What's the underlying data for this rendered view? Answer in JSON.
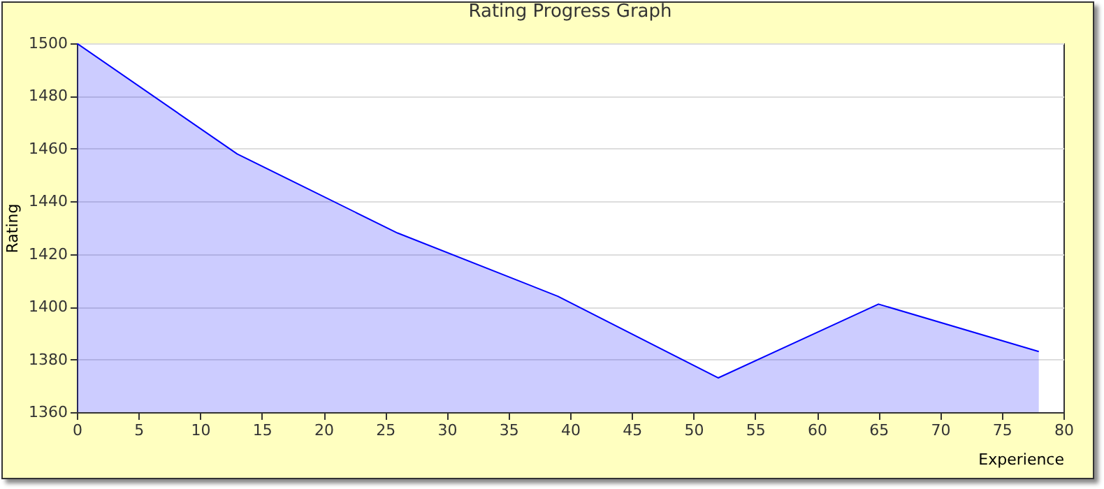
{
  "chart_data": {
    "type": "area",
    "title": "Rating Progress Graph",
    "xlabel": "Experience",
    "ylabel": "Rating",
    "x": [
      0,
      13,
      26,
      39,
      52,
      65,
      78
    ],
    "series": [
      {
        "color": "#0000ff",
        "values": [
          1500,
          1458,
          1428,
          1404,
          1373,
          1401,
          1383
        ]
      }
    ],
    "xlim": [
      0,
      80
    ],
    "xticks": [
      0,
      5,
      10,
      15,
      20,
      25,
      30,
      35,
      40,
      45,
      50,
      55,
      60,
      65,
      70,
      75,
      80
    ],
    "ylim": [
      1360,
      1500
    ],
    "yticks": [
      1360,
      1380,
      1400,
      1420,
      1440,
      1460,
      1480,
      1500
    ],
    "grid": "y",
    "marker": "none",
    "line_style": "solid"
  }
}
